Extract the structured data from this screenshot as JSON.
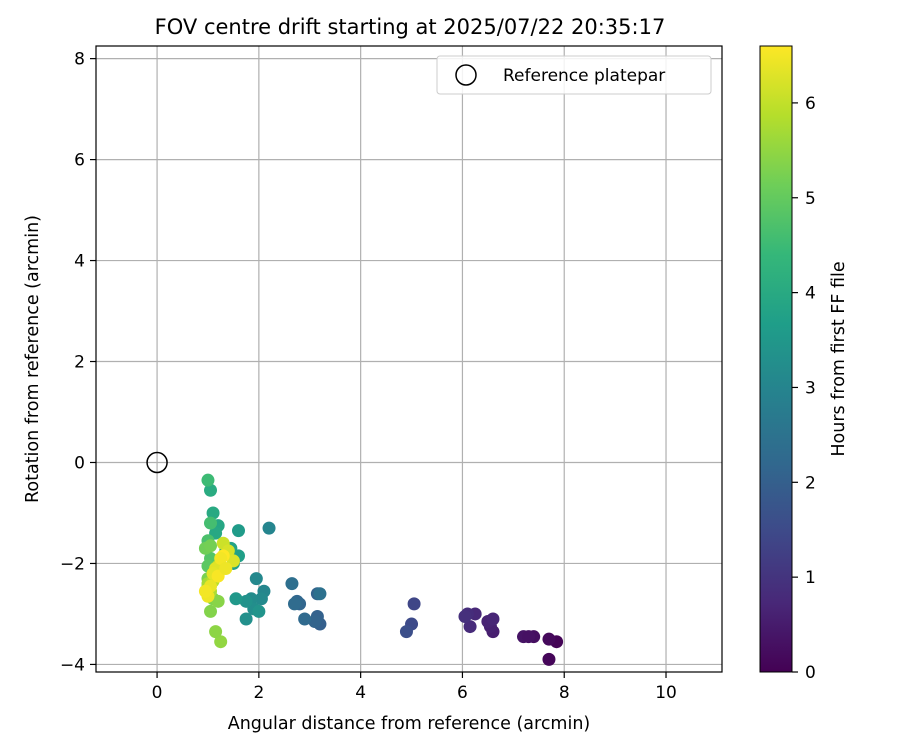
{
  "chart_data": {
    "type": "scatter",
    "title": "FOV centre drift starting at 2025/07/22 20:35:17",
    "xlabel": "Angular distance from reference (arcmin)",
    "ylabel": "Rotation from reference (arcmin)",
    "xlim": [
      -1.2,
      11.1
    ],
    "ylim": [
      -4.15,
      8.25
    ],
    "xticks": [
      0,
      2,
      4,
      6,
      8,
      10
    ],
    "yticks": [
      -4,
      -2,
      0,
      2,
      4,
      6,
      8
    ],
    "grid": true,
    "legend": {
      "placement": "top-right",
      "entries": [
        "Reference platepar"
      ]
    },
    "reference_point": {
      "x": 0,
      "y": 0,
      "label": "Reference platepar"
    },
    "colorbar": {
      "label": "Hours from first FF file",
      "range": [
        0,
        6.6
      ],
      "ticks": [
        0,
        1,
        2,
        3,
        4,
        5,
        6
      ],
      "colormap": "viridis"
    },
    "series": [
      {
        "x": [
          7.7,
          7.85,
          7.7,
          7.4,
          7.2,
          7.3,
          6.6,
          6.55,
          6.5,
          6.6,
          6.25,
          6.15,
          6.1,
          6.05,
          5.05,
          5.0,
          4.9,
          3.2,
          3.15,
          3.1,
          3.15,
          2.8,
          2.75,
          2.9,
          2.7,
          2.65,
          3.2,
          2.2,
          2.1,
          1.95,
          2.05,
          1.85,
          1.9,
          1.75,
          1.75,
          2.0,
          1.55,
          1.6,
          1.6,
          1.5,
          1.45,
          1.35,
          1.2,
          1.15,
          1.1,
          1.05,
          1.0,
          1.05,
          1.0,
          1.05,
          1.0,
          1.1,
          1.0,
          0.95,
          1.05,
          1.0,
          1.1,
          1.05,
          1.2,
          1.25,
          1.15,
          1.0,
          1.05,
          1.1,
          1.2,
          1.3,
          1.4,
          1.5,
          1.15,
          1.1,
          1.05,
          1.0,
          0.95,
          1.2,
          1.3,
          1.25,
          1.35
        ],
        "y": [
          -3.9,
          -3.55,
          -3.5,
          -3.45,
          -3.45,
          -3.45,
          -3.35,
          -3.25,
          -3.15,
          -3.1,
          -3.0,
          -3.25,
          -3.0,
          -3.05,
          -2.8,
          -3.2,
          -3.35,
          -3.2,
          -3.05,
          -3.15,
          -2.6,
          -2.8,
          -2.75,
          -3.1,
          -2.8,
          -2.4,
          -2.6,
          -1.3,
          -2.55,
          -2.3,
          -2.7,
          -2.7,
          -2.9,
          -3.1,
          -2.75,
          -2.95,
          -2.7,
          -1.35,
          -1.85,
          -2.0,
          -1.7,
          -1.75,
          -1.25,
          -1.4,
          -1.0,
          -0.55,
          -0.35,
          -1.2,
          -1.55,
          -1.9,
          -2.05,
          -2.25,
          -2.45,
          -1.7,
          -1.65,
          -2.3,
          -2.7,
          -2.95,
          -2.75,
          -3.55,
          -3.35,
          -2.4,
          -2.55,
          -2.35,
          -2.05,
          -1.6,
          -1.75,
          -1.95,
          -2.1,
          -2.2,
          -2.45,
          -2.65,
          -2.55,
          -2.25,
          -1.85,
          -1.9,
          -2.1
        ],
        "hours": [
          0.1,
          0.05,
          0.15,
          0.25,
          0.35,
          0.3,
          0.55,
          0.6,
          0.65,
          0.7,
          0.75,
          0.8,
          0.85,
          0.9,
          1.4,
          1.5,
          1.6,
          2.0,
          2.05,
          2.1,
          2.1,
          2.15,
          2.2,
          2.25,
          2.3,
          2.4,
          2.45,
          3.0,
          3.05,
          3.1,
          3.15,
          3.2,
          3.25,
          3.3,
          3.35,
          3.4,
          3.5,
          3.6,
          3.7,
          3.75,
          3.8,
          3.85,
          3.9,
          3.95,
          4.0,
          4.05,
          4.5,
          4.6,
          4.7,
          4.8,
          4.9,
          5.0,
          5.1,
          5.15,
          5.2,
          5.25,
          5.3,
          5.35,
          5.4,
          5.5,
          5.45,
          5.7,
          5.8,
          5.9,
          6.0,
          6.1,
          6.2,
          6.25,
          6.3,
          6.35,
          6.4,
          6.45,
          6.5,
          6.55,
          6.6,
          6.5,
          6.45
        ]
      }
    ]
  }
}
